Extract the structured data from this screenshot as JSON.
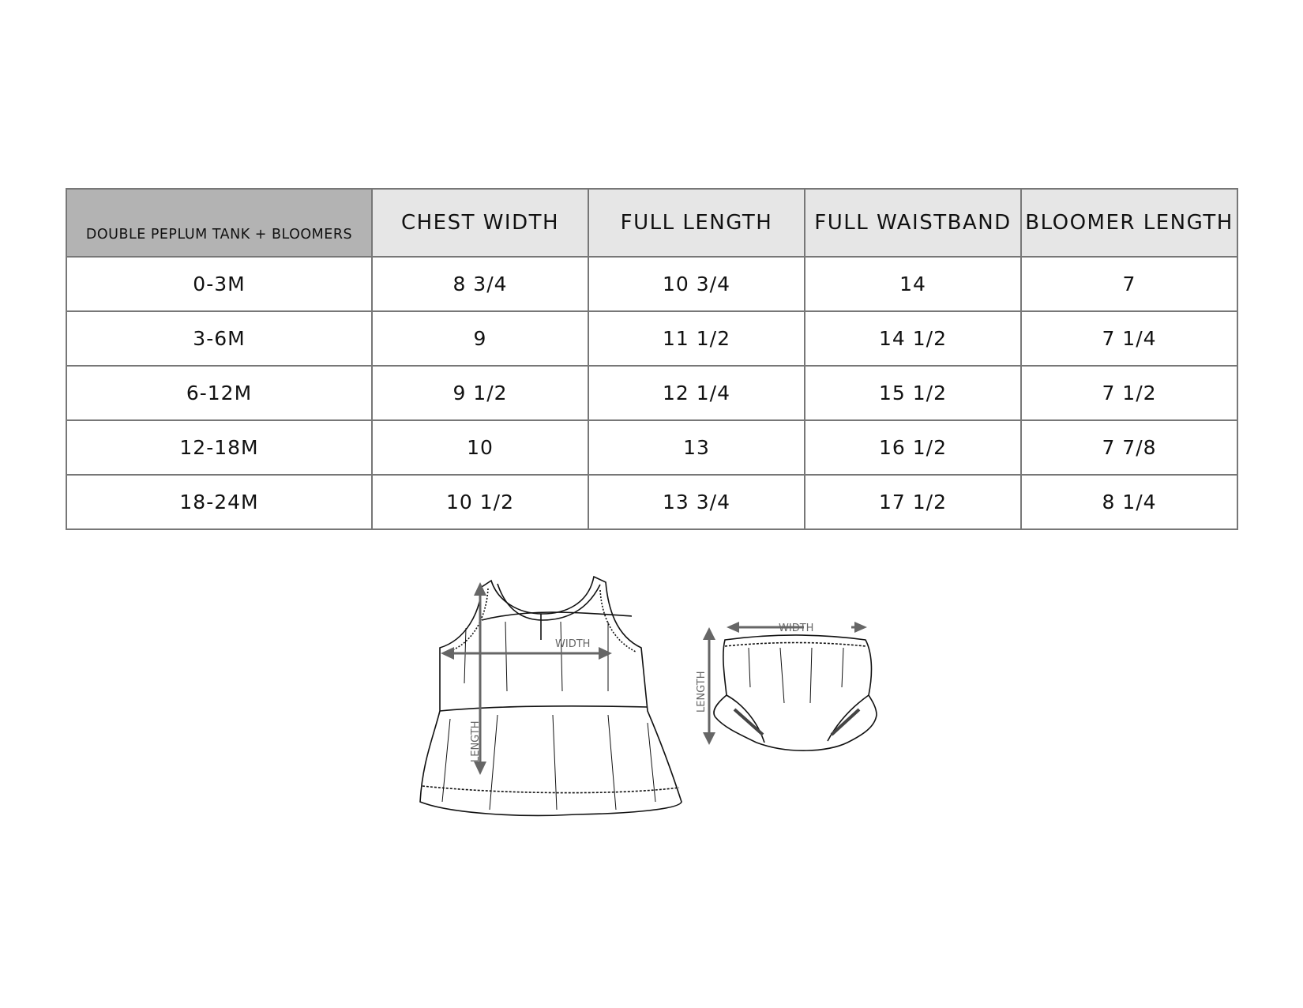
{
  "table": {
    "corner_label": "DOUBLE PEPLUM TANK + BLOOMERS",
    "headers": [
      "CHEST WIDTH",
      "FULL LENGTH",
      "FULL WAISTBAND",
      "BLOOMER LENGTH"
    ],
    "rows": [
      {
        "size": "0-3M",
        "values": [
          "8 3/4",
          "10 3/4",
          "14",
          "7"
        ]
      },
      {
        "size": "3-6M",
        "values": [
          "9",
          "11 1/2",
          "14 1/2",
          "7 1/4"
        ]
      },
      {
        "size": "6-12M",
        "values": [
          "9 1/2",
          "12 1/4",
          "15 1/2",
          "7 1/2"
        ]
      },
      {
        "size": "12-18M",
        "values": [
          "10",
          "13",
          "16 1/2",
          "7 7/8"
        ]
      },
      {
        "size": "18-24M",
        "values": [
          "10 1/2",
          "13 3/4",
          "17 1/2",
          "8 1/4"
        ]
      }
    ]
  },
  "diagrams": {
    "tank": {
      "width_label": "WIDTH",
      "length_label": "LENGTH"
    },
    "bloomers": {
      "width_label": "WIDTH",
      "length_label": "LENGTH"
    }
  },
  "colors": {
    "corner_bg": "#b3b3b3",
    "header_bg": "#e6e6e6",
    "border": "#777777",
    "arrow": "#666666"
  }
}
